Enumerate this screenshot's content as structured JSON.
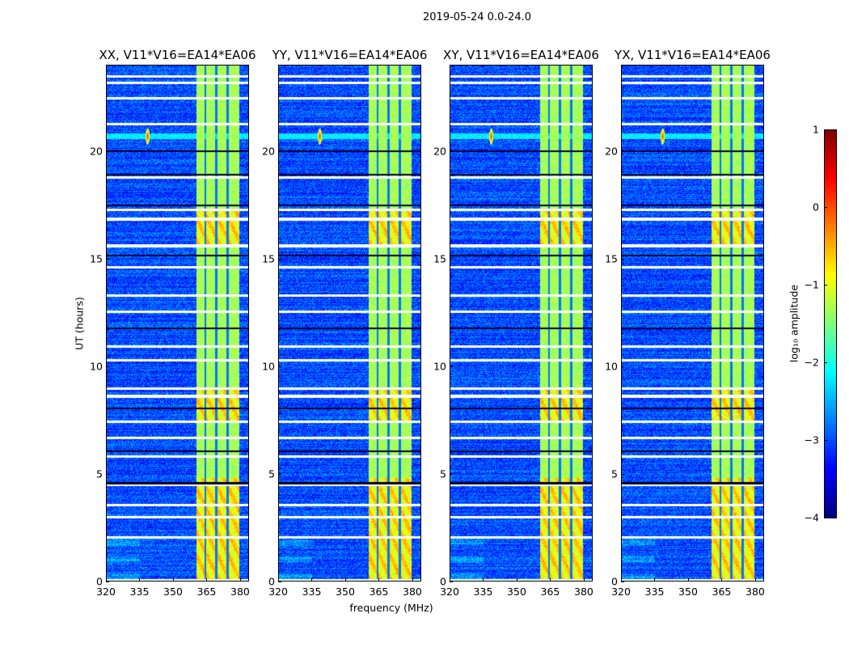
{
  "chart_data": {
    "type": "heatmap",
    "title": "2019-05-24 0.0-24.0",
    "xlabel": "frequency (MHz)",
    "ylabel": "UT (hours)",
    "xlim": [
      320,
      384
    ],
    "ylim": [
      0,
      24
    ],
    "xticks": [
      "320",
      "335",
      "350",
      "365",
      "380"
    ],
    "yticks": [
      "0",
      "5",
      "10",
      "15",
      "20"
    ],
    "xtick_values": [
      320,
      335,
      350,
      365,
      380
    ],
    "ytick_values": [
      0,
      5,
      10,
      15,
      20
    ],
    "panels": [
      {
        "title": "XX, V11*V16=EA14*EA06"
      },
      {
        "title": "YY, V11*V16=EA14*EA06"
      },
      {
        "title": "XY, V11*V16=EA14*EA06"
      },
      {
        "title": "YX, V11*V16=EA14*EA06"
      }
    ],
    "colorbar": {
      "label": "log₁₀ amplitude",
      "colormap": "jet",
      "range": [
        -4,
        1
      ],
      "ticks": [
        "1",
        "0",
        "−1",
        "−2",
        "−3",
        "−4"
      ],
      "tick_values": [
        1,
        0,
        -1,
        -2,
        -3,
        -4
      ]
    },
    "features": {
      "background_level": -3.0,
      "bright_band_MHz": [
        360.5,
        380
      ],
      "band_level": -1.3,
      "band_gaps_MHz": [
        364.6,
        369.6,
        374.7
      ],
      "rfi_burst": {
        "freq_MHz": 338.5,
        "hour": 20.7,
        "level": 0.2
      },
      "flagged_hours_white": [
        23.5,
        23.2,
        22.46,
        21.26,
        18.79,
        17.29,
        16.84,
        15.6,
        14.59,
        13.27,
        12.52,
        10.91,
        10.27,
        8.96,
        8.59,
        7.39,
        6.64,
        5.77,
        4.46,
        3.52,
        2.96,
        2.02,
        0.02
      ],
      "dark_rows_hours": [
        20.02,
        18.9,
        17.47,
        15.15,
        11.77,
        8.02,
        6.04,
        4.54
      ],
      "strong_band_hours": [
        [
          7.4,
          9.0
        ],
        [
          15.6,
          17.2
        ],
        [
          0,
          4.8
        ]
      ]
    }
  }
}
